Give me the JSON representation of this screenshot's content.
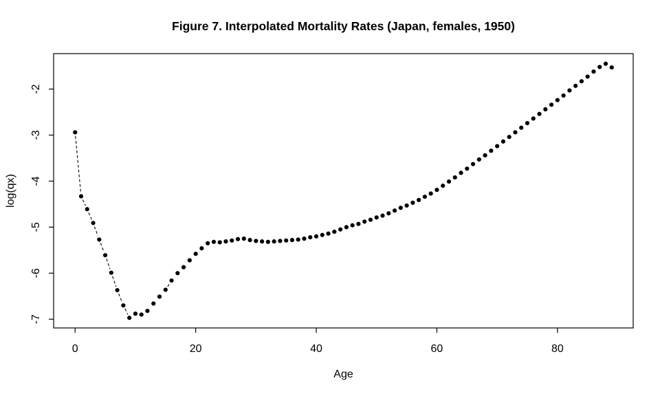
{
  "figure": {
    "title": "Figure 7. Interpolated Mortality Rates (Japan, females, 1950)"
  },
  "colors": {
    "foreground": "#000000",
    "background": "#ffffff"
  },
  "chart_data": {
    "type": "scatter",
    "title": "Figure 7. Interpolated Mortality Rates (Japan, females, 1950)",
    "xlabel": "Age",
    "ylabel": "log(qx)",
    "xlim": [
      -3.56,
      92.56
    ],
    "ylim": [
      -7.19,
      -1.23
    ],
    "x_ticks": [
      0,
      20,
      40,
      60,
      80
    ],
    "y_ticks": [
      -2,
      -3,
      -4,
      -5,
      -6,
      -7
    ],
    "grid": false,
    "legend": "none",
    "marker": "filled-circle",
    "point_color": "#000000",
    "line_style": "dashed-segments-between-distant-points",
    "x": [
      0,
      1,
      2,
      3,
      4,
      5,
      6,
      7,
      8,
      9,
      10,
      11,
      12,
      13,
      14,
      15,
      16,
      17,
      18,
      19,
      20,
      21,
      22,
      23,
      24,
      25,
      26,
      27,
      28,
      29,
      30,
      31,
      32,
      33,
      34,
      35,
      36,
      37,
      38,
      39,
      40,
      41,
      42,
      43,
      44,
      45,
      46,
      47,
      48,
      49,
      50,
      51,
      52,
      53,
      54,
      55,
      56,
      57,
      58,
      59,
      60,
      61,
      62,
      63,
      64,
      65,
      66,
      67,
      68,
      69,
      70,
      71,
      72,
      73,
      74,
      75,
      76,
      77,
      78,
      79,
      80,
      81,
      82,
      83,
      84,
      85,
      86,
      87,
      88,
      89
    ],
    "y": [
      -2.94,
      -4.33,
      -4.61,
      -4.91,
      -5.27,
      -5.61,
      -5.99,
      -6.37,
      -6.7,
      -6.97,
      -6.88,
      -6.9,
      -6.82,
      -6.66,
      -6.51,
      -6.36,
      -6.16,
      -6.0,
      -5.87,
      -5.72,
      -5.58,
      -5.46,
      -5.35,
      -5.32,
      -5.33,
      -5.31,
      -5.29,
      -5.26,
      -5.25,
      -5.28,
      -5.3,
      -5.31,
      -5.32,
      -5.31,
      -5.3,
      -5.29,
      -5.28,
      -5.27,
      -5.25,
      -5.22,
      -5.2,
      -5.17,
      -5.14,
      -5.1,
      -5.05,
      -5.0,
      -4.96,
      -4.93,
      -4.88,
      -4.84,
      -4.79,
      -4.75,
      -4.7,
      -4.64,
      -4.58,
      -4.53,
      -4.47,
      -4.41,
      -4.34,
      -4.27,
      -4.19,
      -4.1,
      -4.01,
      -3.92,
      -3.82,
      -3.73,
      -3.63,
      -3.53,
      -3.44,
      -3.34,
      -3.24,
      -3.14,
      -3.04,
      -2.94,
      -2.84,
      -2.74,
      -2.64,
      -2.54,
      -2.44,
      -2.34,
      -2.24,
      -2.14,
      -2.03,
      -1.93,
      -1.83,
      -1.73,
      -1.62,
      -1.52,
      -1.45,
      -1.53
    ]
  }
}
